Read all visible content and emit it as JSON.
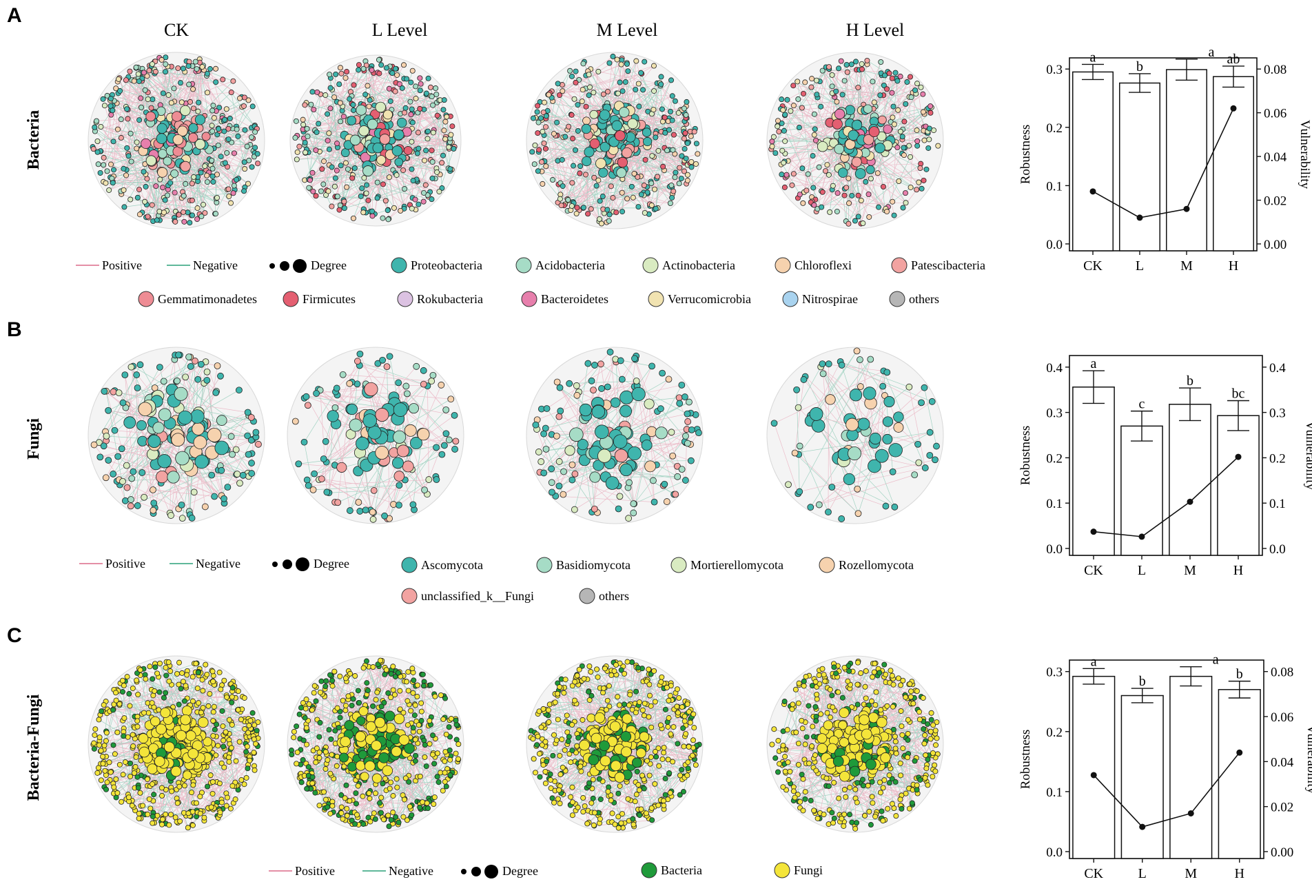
{
  "panel_letters": [
    "A",
    "B",
    "C"
  ],
  "column_titles": [
    "CK",
    "L   Level",
    "M   Level",
    "H   Level"
  ],
  "row_labels": [
    "Bacteria",
    "Fungi",
    "Bacteria-Fungi"
  ],
  "legend_common": {
    "positive": "Positive",
    "negative": "Negative",
    "degree": "Degree"
  },
  "legend_colors": {
    "positive": "#e48fa6",
    "negative": "#5fb89a"
  },
  "legends": [
    [
      {
        "name": "Proteobacteria",
        "color": "#3fb5ad"
      },
      {
        "name": "Acidobacteria",
        "color": "#a6dcc6"
      },
      {
        "name": "Actinobacteria",
        "color": "#d9ebc1"
      },
      {
        "name": "Chloroflexi",
        "color": "#f6d2ae"
      },
      {
        "name": "Patescibacteria",
        "color": "#f2a3a1"
      },
      {
        "name": "Gemmatimonadetes",
        "color": "#ee8c94"
      },
      {
        "name": "Firmicutes",
        "color": "#e45f71"
      },
      {
        "name": "Rokubacteria",
        "color": "#dcc2e2"
      },
      {
        "name": "Bacteroidetes",
        "color": "#e77fac"
      },
      {
        "name": "Verrucomicrobia",
        "color": "#f1e3b1"
      },
      {
        "name": "Nitrospirae",
        "color": "#a9d3ef"
      },
      {
        "name": "others",
        "color": "#b6b6b6"
      }
    ],
    [
      {
        "name": "Ascomycota",
        "color": "#3fb5ad"
      },
      {
        "name": "Basidiomycota",
        "color": "#a6dcc6"
      },
      {
        "name": "Mortierellomycota",
        "color": "#d9ebc1"
      },
      {
        "name": "Rozellomycota",
        "color": "#f6d2ae"
      },
      {
        "name": "unclassified_k__Fungi",
        "color": "#f2a3a1"
      },
      {
        "name": "others",
        "color": "#b6b6b6"
      }
    ],
    [
      {
        "name": "Bacteria",
        "color": "#1f9a3a"
      },
      {
        "name": "Fungi",
        "color": "#f4e53a"
      }
    ]
  ],
  "networks": [
    [
      {
        "n": 430,
        "palette": [
          0,
          0,
          0,
          1,
          2,
          3,
          4,
          5,
          8,
          9,
          0,
          1
        ]
      },
      {
        "n": 380,
        "palette": [
          0,
          0,
          0,
          1,
          2,
          3,
          4,
          6,
          8,
          9,
          0,
          1
        ]
      },
      {
        "n": 390,
        "palette": [
          0,
          0,
          0,
          0,
          1,
          2,
          3,
          4,
          6,
          9
        ]
      },
      {
        "n": 320,
        "palette": [
          0,
          0,
          0,
          1,
          2,
          3,
          4,
          6,
          8,
          9
        ]
      }
    ],
    [
      {
        "n": 190,
        "palette": [
          0,
          0,
          0,
          0,
          1,
          2,
          3,
          4
        ]
      },
      {
        "n": 140,
        "palette": [
          0,
          0,
          0,
          0,
          1,
          2,
          3,
          4
        ]
      },
      {
        "n": 160,
        "palette": [
          0,
          0,
          0,
          0,
          1,
          2,
          3,
          4
        ]
      },
      {
        "n": 80,
        "palette": [
          0,
          0,
          0,
          0,
          1,
          2,
          3
        ]
      }
    ],
    [
      {
        "n": 620,
        "palette": [
          1,
          1,
          1,
          1,
          1,
          0
        ]
      },
      {
        "n": 560,
        "palette": [
          1,
          1,
          1,
          0,
          0
        ]
      },
      {
        "n": 580,
        "palette": [
          1,
          1,
          1,
          1,
          0
        ]
      },
      {
        "n": 520,
        "palette": [
          1,
          1,
          1,
          1,
          0
        ]
      }
    ]
  ],
  "chart_data": [
    {
      "type": "bar",
      "panel": "A",
      "categories": [
        "CK",
        "L",
        "M",
        "H"
      ],
      "values": [
        0.295,
        0.276,
        0.299,
        0.287
      ],
      "errors": [
        0.013,
        0.016,
        0.018,
        0.018
      ],
      "letters": [
        "a",
        "b",
        "a",
        "ab"
      ],
      "ylabel": "Robustness",
      "ylim": [
        0,
        0.3
      ],
      "yticks": [
        "0.0",
        "0.1",
        "0.2",
        "0.3"
      ],
      "ytick_values": [
        0,
        0.1,
        0.2,
        0.3
      ],
      "secondary": {
        "type": "line",
        "label": "Vulnerability",
        "values": [
          0.024,
          0.012,
          0.016,
          0.062
        ],
        "ylim": [
          0,
          0.08
        ],
        "yticks": [
          "0.00",
          "0.02",
          "0.04",
          "0.06",
          "0.08"
        ],
        "ytick_values": [
          0,
          0.02,
          0.04,
          0.06,
          0.08
        ]
      }
    },
    {
      "type": "bar",
      "panel": "B",
      "categories": [
        "CK",
        "L",
        "M",
        "H"
      ],
      "values": [
        0.356,
        0.27,
        0.318,
        0.293
      ],
      "errors": [
        0.036,
        0.033,
        0.036,
        0.033
      ],
      "letters": [
        "a",
        "c",
        "b",
        "bc"
      ],
      "ylabel": "Robustness",
      "ylim": [
        0,
        0.4
      ],
      "yticks": [
        "0.0",
        "0.1",
        "0.2",
        "0.3",
        "0.4"
      ],
      "ytick_values": [
        0,
        0.1,
        0.2,
        0.3,
        0.4
      ],
      "secondary": {
        "type": "line",
        "label": "Vulnerability",
        "values": [
          0.037,
          0.026,
          0.103,
          0.202
        ],
        "ylim": [
          0,
          0.4
        ],
        "yticks": [
          "0.0",
          "0.1",
          "0.2",
          "0.3",
          "0.4"
        ],
        "ytick_values": [
          0,
          0.1,
          0.2,
          0.3,
          0.4
        ]
      }
    },
    {
      "type": "bar",
      "panel": "C",
      "categories": [
        "CK",
        "L",
        "M",
        "H"
      ],
      "values": [
        0.292,
        0.26,
        0.292,
        0.27
      ],
      "errors": [
        0.013,
        0.012,
        0.016,
        0.014
      ],
      "letters": [
        "a",
        "b",
        "a",
        "b"
      ],
      "ylabel": "Robustness",
      "ylim": [
        0,
        0.3
      ],
      "yticks": [
        "0.0",
        "0.1",
        "0.2",
        "0.3"
      ],
      "ytick_values": [
        0,
        0.1,
        0.2,
        0.3
      ],
      "secondary": {
        "type": "line",
        "label": "Vulnerability",
        "values": [
          0.034,
          0.011,
          0.017,
          0.044
        ],
        "ylim": [
          0,
          0.08
        ],
        "yticks": [
          "0.00",
          "0.02",
          "0.04",
          "0.06",
          "0.08"
        ],
        "ytick_values": [
          0,
          0.02,
          0.04,
          0.06,
          0.08
        ]
      }
    }
  ]
}
